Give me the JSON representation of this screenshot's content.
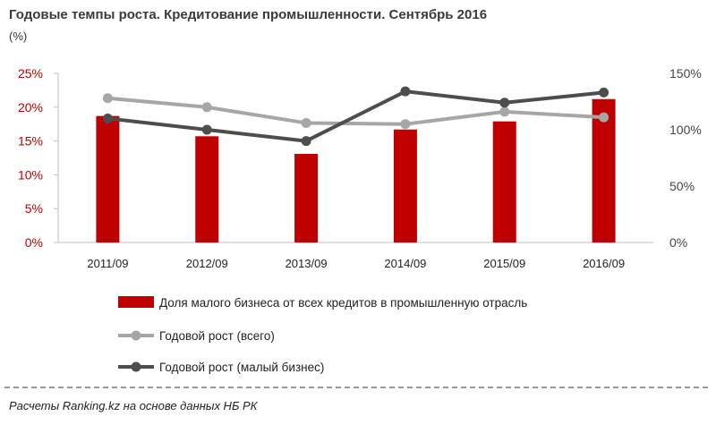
{
  "chart_data": {
    "type": "bar+line",
    "title": "Годовые темпы роста. Кредитование промышленности. Сентябрь 2016",
    "unit": "(%)",
    "categories": [
      "2011/09",
      "2012/09",
      "2013/09",
      "2014/09",
      "2015/09",
      "2016/09"
    ],
    "left_axis": {
      "ticks": [
        "0%",
        "5%",
        "10%",
        "15%",
        "20%",
        "25%"
      ],
      "ylim": [
        0,
        25
      ]
    },
    "right_axis": {
      "ticks": [
        "0%",
        "50%",
        "100%",
        "150%"
      ],
      "ylim": [
        0,
        150
      ]
    },
    "series": [
      {
        "name": "Доля малого бизнеса от всех кредитов в промышленную отрасль",
        "type": "bar",
        "axis": "left",
        "color": "#c00000",
        "values": [
          18.7,
          15.7,
          13.1,
          16.7,
          17.9,
          21.2
        ]
      },
      {
        "name": "Годовой рост (всего)",
        "type": "line",
        "axis": "right",
        "color": "#a6a6a6",
        "values": [
          128,
          120,
          106,
          105,
          116,
          111
        ]
      },
      {
        "name": "Годовой рост (малый бизнес)",
        "type": "line",
        "axis": "right",
        "color": "#4d4d4d",
        "values": [
          110,
          100,
          90,
          134,
          124,
          133
        ]
      }
    ],
    "legend_position": "bottom",
    "grid": false
  },
  "source": "Расчеты Ranking.kz на основе данных НБ РК"
}
